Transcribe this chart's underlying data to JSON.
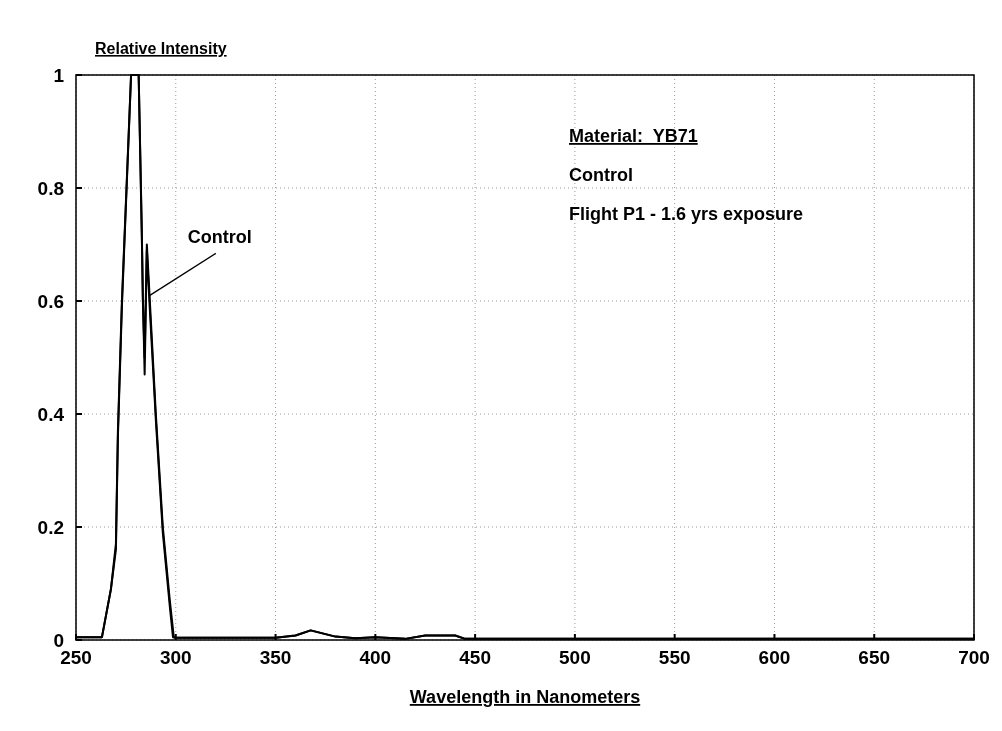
{
  "chart_data": {
    "type": "line",
    "ylabel": "Relative Intensity",
    "xlabel": "Wavelength in Nanometers",
    "xlim": [
      250,
      700
    ],
    "xticks": [
      250,
      300,
      350,
      400,
      450,
      500,
      550,
      600,
      650,
      700
    ],
    "ylim": [
      0,
      1
    ],
    "yticks": [
      0,
      0.2,
      0.4,
      0.6,
      0.8,
      1
    ],
    "grid": true,
    "line_style": "solid",
    "marker": "none",
    "series": [
      {
        "color": "#000000",
        "x": [
          250,
          263,
          267.5,
          270,
          271,
          273,
          277.6,
          281.4,
          283,
          283.5,
          284.4,
          285.5,
          287,
          290,
          293.5,
          297,
          298.6,
          300,
          350,
          360,
          367.6,
          380,
          390,
          400,
          415,
          425,
          440,
          445,
          500,
          700
        ],
        "values": [
          0.005,
          0.005,
          0.09,
          0.16,
          0.36,
          0.59,
          1,
          1,
          0.71,
          0.61,
          0.47,
          0.69,
          0.585,
          0.39,
          0.19,
          0.06,
          0.005,
          0.004,
          0.004,
          0.008,
          0.017,
          0.006,
          0.003,
          0.005,
          0.002,
          0.008,
          0.008,
          0.002,
          0.002,
          0.002
        ]
      },
      {
        "color": "#000000",
        "x": [
          250,
          263,
          267.5,
          270,
          271,
          273,
          277.6,
          281.4,
          283,
          283.5,
          284.4,
          285.5,
          287,
          290,
          293.5,
          297,
          299,
          300,
          350,
          360,
          367.6,
          380,
          390,
          400,
          415,
          425,
          440,
          445,
          500,
          700
        ],
        "values": [
          0.005,
          0.005,
          0.09,
          0.17,
          0.37,
          0.6,
          1,
          1,
          0.72,
          0.6,
          0.5,
          0.7,
          0.6,
          0.4,
          0.2,
          0.07,
          0.005,
          0.004,
          0.004,
          0.008,
          0.017,
          0.006,
          0.003,
          0.005,
          0.002,
          0.008,
          0.008,
          0.002,
          0.002,
          0.002
        ]
      }
    ],
    "annotations": [
      {
        "text": "Control",
        "x": 287,
        "y": 0.61
      },
      "Material:  YB71",
      "Control",
      "Flight P1 - 1.6 yrs exposure"
    ]
  }
}
